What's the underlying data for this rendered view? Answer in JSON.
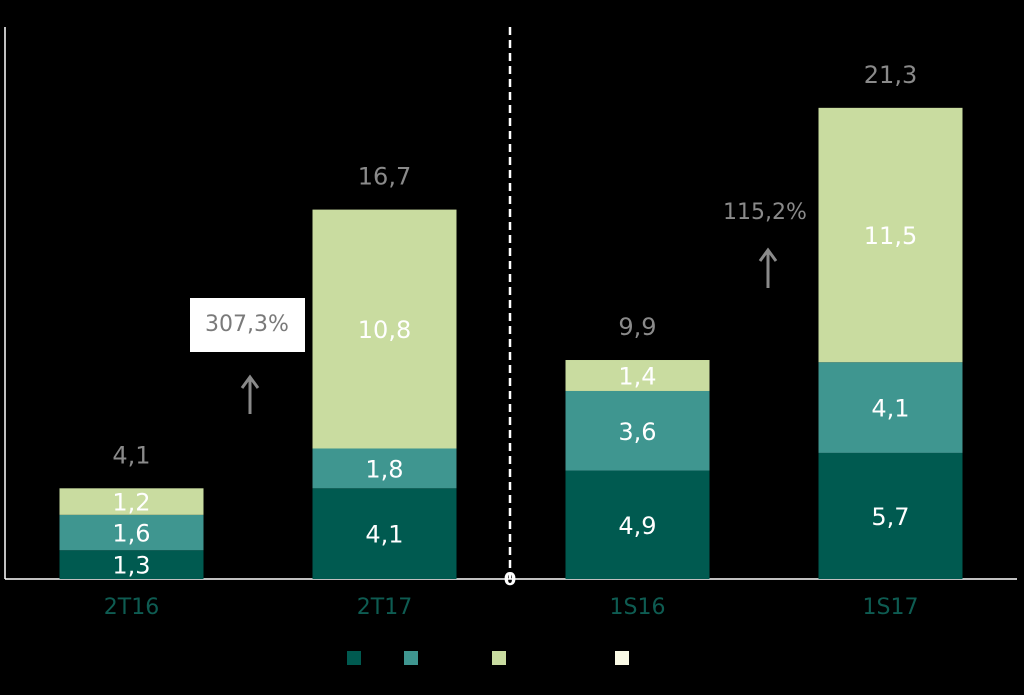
{
  "chart_data": {
    "type": "stacked_bar",
    "categories": [
      "2T16",
      "2T17",
      "1S16",
      "1S17"
    ],
    "series": [
      {
        "color": "#005a50",
        "values": [
          1.3,
          4.1,
          4.9,
          5.7
        ],
        "value_labels": [
          "1,3",
          "4,1",
          "4,9",
          "5,7"
        ]
      },
      {
        "color": "#3f9690",
        "values": [
          1.6,
          1.8,
          3.6,
          4.1
        ],
        "value_labels": [
          "1,6",
          "1,8",
          "3,6",
          "4,1"
        ]
      },
      {
        "color": "#c9dca0",
        "values": [
          1.2,
          10.8,
          1.4,
          11.5
        ],
        "value_labels": [
          "1,2",
          "10,8",
          "1,4",
          "11,5"
        ]
      }
    ],
    "extra_legend_color": "#fafae6",
    "totals": [
      4.1,
      16.7,
      9.9,
      21.3
    ],
    "total_labels": [
      "4,1",
      "16,7",
      "9,9",
      "21,3"
    ],
    "annotations": [
      "307,3%",
      "115,2%"
    ],
    "ylim": [
      0,
      25
    ],
    "yticks": [
      0
    ],
    "grid": false
  }
}
